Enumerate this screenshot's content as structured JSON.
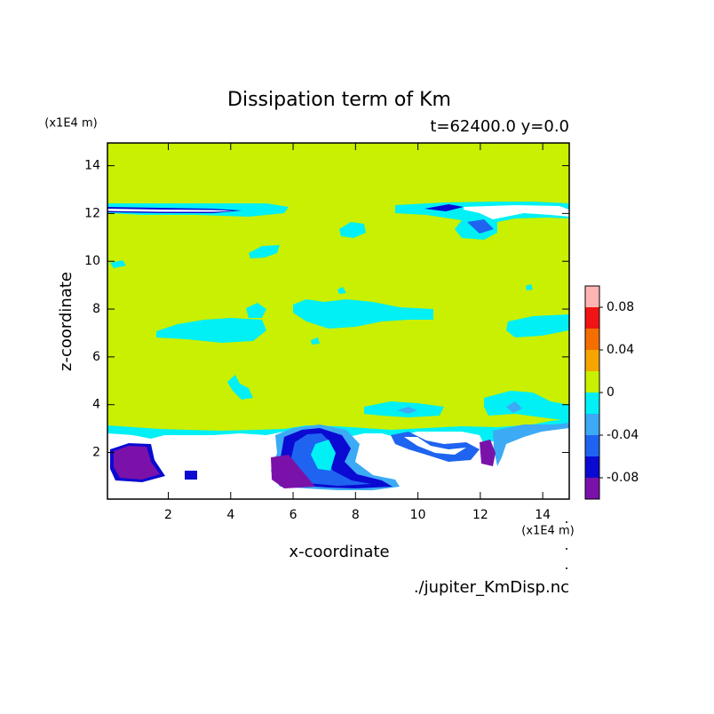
{
  "chart_data": {
    "type": "contour",
    "title": "Dissipation term of Km",
    "subtitle": "t=62400.0 y=0.0",
    "x_label": "x-coordinate",
    "y_label": "z-coordinate",
    "x_unit": "(x1E4 m)",
    "y_unit": "(x1E4 m)",
    "source": "./jupiter_KmDisp.nc",
    "xlim": [
      0.05,
      14.85
    ],
    "ylim": [
      0.05,
      14.95
    ],
    "xticks": [
      2,
      4,
      6,
      8,
      10,
      12,
      14
    ],
    "yticks": [
      2,
      4,
      6,
      8,
      10,
      12,
      14
    ],
    "levels": [
      -0.1,
      -0.08,
      -0.06,
      -0.04,
      -0.02,
      0,
      0.02,
      0.04,
      0.06,
      0.08,
      0.1
    ],
    "colors": [
      "#7a12aa",
      "#0a0ad2",
      "#1e64f0",
      "#3caaf5",
      "#00f0f5",
      "#c8f000",
      "#f5a500",
      "#f56e00",
      "#f01414",
      "#ffb4b4"
    ],
    "colorbar_ticks": [
      -0.08,
      -0.04,
      0,
      0.04,
      0.08
    ]
  }
}
